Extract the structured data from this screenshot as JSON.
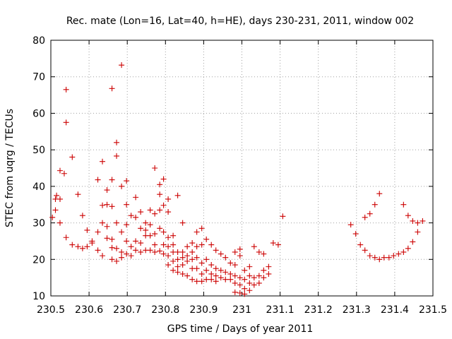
{
  "chart_data": {
    "type": "scatter",
    "title": "Rec. mate (Lon=16, Lat=40, h=HE), days 230-231, 2011, window 002",
    "xlabel": "GPS time / Days of year 2011",
    "ylabel": "STEC from uqrg / TECUs",
    "xlim": [
      230.5,
      231.5
    ],
    "ylim": [
      10,
      80
    ],
    "grid": true,
    "marker": "plus",
    "color": "#cc0000",
    "x_ticks": [
      "230.5",
      "230.6",
      "230.7",
      "230.8",
      "230.9",
      "231",
      "231.1",
      "231.2",
      "231.3",
      "231.4",
      "231.5"
    ],
    "y_ticks": [
      "10",
      "20",
      "30",
      "40",
      "50",
      "60",
      "70",
      "80"
    ],
    "x_tick_values": [
      230.5,
      230.6,
      230.7,
      230.8,
      230.9,
      231.0,
      231.1,
      231.2,
      231.3,
      231.4,
      231.5
    ],
    "y_tick_values": [
      10,
      20,
      30,
      40,
      50,
      60,
      70,
      80
    ],
    "series": [
      {
        "points": [
          [
            230.504,
            31.5
          ],
          [
            230.512,
            33.5
          ],
          [
            230.512,
            36.5
          ],
          [
            230.515,
            37.5
          ],
          [
            230.524,
            36.5
          ],
          [
            230.524,
            30.0
          ],
          [
            230.524,
            44.3
          ],
          [
            230.535,
            43.5
          ],
          [
            230.54,
            66.5
          ],
          [
            230.54,
            57.5
          ],
          [
            230.54,
            26.0
          ],
          [
            230.556,
            48.0
          ],
          [
            230.556,
            24.0
          ],
          [
            230.571,
            37.8
          ],
          [
            230.571,
            23.5
          ],
          [
            230.583,
            32.0
          ],
          [
            230.583,
            23.0
          ],
          [
            230.595,
            28.0
          ],
          [
            230.595,
            23.5
          ],
          [
            230.608,
            25.0
          ],
          [
            230.608,
            24.5
          ],
          [
            230.623,
            41.8
          ],
          [
            230.623,
            27.5
          ],
          [
            230.623,
            22.5
          ],
          [
            230.635,
            46.8
          ],
          [
            230.635,
            34.8
          ],
          [
            230.635,
            30.0
          ],
          [
            230.635,
            21.0
          ],
          [
            230.647,
            39.0
          ],
          [
            230.647,
            35.0
          ],
          [
            230.647,
            29.0
          ],
          [
            230.647,
            25.8
          ],
          [
            230.66,
            66.8
          ],
          [
            230.66,
            41.8
          ],
          [
            230.66,
            34.5
          ],
          [
            230.66,
            25.5
          ],
          [
            230.66,
            23.2
          ],
          [
            230.66,
            20.0
          ],
          [
            230.672,
            52.0
          ],
          [
            230.672,
            48.3
          ],
          [
            230.672,
            30.0
          ],
          [
            230.672,
            23.0
          ],
          [
            230.672,
            19.5
          ],
          [
            230.685,
            73.2
          ],
          [
            230.685,
            40.0
          ],
          [
            230.685,
            27.5
          ],
          [
            230.685,
            22.0
          ],
          [
            230.685,
            20.5
          ],
          [
            230.698,
            41.5
          ],
          [
            230.698,
            35.0
          ],
          [
            230.698,
            29.5
          ],
          [
            230.698,
            25.0
          ],
          [
            230.698,
            21.5
          ],
          [
            230.71,
            32.0
          ],
          [
            230.71,
            23.5
          ],
          [
            230.71,
            21.0
          ],
          [
            230.722,
            37.0
          ],
          [
            230.722,
            31.5
          ],
          [
            230.722,
            25.0
          ],
          [
            230.722,
            22.5
          ],
          [
            230.735,
            33.0
          ],
          [
            230.735,
            28.5
          ],
          [
            230.735,
            24.5
          ],
          [
            230.735,
            22.0
          ],
          [
            230.748,
            30.0
          ],
          [
            230.748,
            28.0
          ],
          [
            230.748,
            26.5
          ],
          [
            230.748,
            22.5
          ],
          [
            230.76,
            33.5
          ],
          [
            230.76,
            29.5
          ],
          [
            230.76,
            26.5
          ],
          [
            230.76,
            22.5
          ],
          [
            230.772,
            45.0
          ],
          [
            230.772,
            32.5
          ],
          [
            230.772,
            27.0
          ],
          [
            230.772,
            24.0
          ],
          [
            230.772,
            22.0
          ],
          [
            230.785,
            40.5
          ],
          [
            230.785,
            37.8
          ],
          [
            230.785,
            33.5
          ],
          [
            230.785,
            28.5
          ],
          [
            230.785,
            22.3
          ],
          [
            230.795,
            42.0
          ],
          [
            230.795,
            34.8
          ],
          [
            230.795,
            27.5
          ],
          [
            230.795,
            24.0
          ],
          [
            230.795,
            21.5
          ],
          [
            230.807,
            36.5
          ],
          [
            230.807,
            33.0
          ],
          [
            230.807,
            26.0
          ],
          [
            230.807,
            23.5
          ],
          [
            230.807,
            21.0
          ],
          [
            230.807,
            18.5
          ],
          [
            230.82,
            26.5
          ],
          [
            230.82,
            24.0
          ],
          [
            230.82,
            22.0
          ],
          [
            230.82,
            19.5
          ],
          [
            230.82,
            17.0
          ],
          [
            230.832,
            37.5
          ],
          [
            230.832,
            22.0
          ],
          [
            230.832,
            20.0
          ],
          [
            230.832,
            18.0
          ],
          [
            230.832,
            16.5
          ],
          [
            230.845,
            30.0
          ],
          [
            230.845,
            22.0
          ],
          [
            230.845,
            20.5
          ],
          [
            230.845,
            18.5
          ],
          [
            230.845,
            16.0
          ],
          [
            230.857,
            23.5
          ],
          [
            230.857,
            21.0
          ],
          [
            230.857,
            19.5
          ],
          [
            230.857,
            15.5
          ],
          [
            230.87,
            24.5
          ],
          [
            230.87,
            22.0
          ],
          [
            230.87,
            20.0
          ],
          [
            230.87,
            17.5
          ],
          [
            230.87,
            14.5
          ],
          [
            230.882,
            27.5
          ],
          [
            230.882,
            23.5
          ],
          [
            230.882,
            20.5
          ],
          [
            230.882,
            17.5
          ],
          [
            230.882,
            14.0
          ],
          [
            230.895,
            28.5
          ],
          [
            230.895,
            24.0
          ],
          [
            230.895,
            19.0
          ],
          [
            230.895,
            16.0
          ],
          [
            230.895,
            14.0
          ],
          [
            230.907,
            25.5
          ],
          [
            230.907,
            20.0
          ],
          [
            230.907,
            17.0
          ],
          [
            230.907,
            14.5
          ],
          [
            230.92,
            24.0
          ],
          [
            230.92,
            18.5
          ],
          [
            230.92,
            16.0
          ],
          [
            230.92,
            14.5
          ],
          [
            230.932,
            22.5
          ],
          [
            230.932,
            17.5
          ],
          [
            230.932,
            15.5
          ],
          [
            230.932,
            14.0
          ],
          [
            230.945,
            21.5
          ],
          [
            230.945,
            17.0
          ],
          [
            230.945,
            15.0
          ],
          [
            230.957,
            20.5
          ],
          [
            230.957,
            16.5
          ],
          [
            230.957,
            14.5
          ],
          [
            230.97,
            19.0
          ],
          [
            230.97,
            16.0
          ],
          [
            230.97,
            14.5
          ],
          [
            230.982,
            22.0
          ],
          [
            230.982,
            18.5
          ],
          [
            230.982,
            15.5
          ],
          [
            230.982,
            13.5
          ],
          [
            230.982,
            11.0
          ],
          [
            230.995,
            22.8
          ],
          [
            230.995,
            21.0
          ],
          [
            230.995,
            15.0
          ],
          [
            230.995,
            13.0
          ],
          [
            230.995,
            10.8
          ],
          [
            231.007,
            17.0
          ],
          [
            231.007,
            14.5
          ],
          [
            231.007,
            12.0
          ],
          [
            231.007,
            10.5
          ],
          [
            231.02,
            18.0
          ],
          [
            231.02,
            15.5
          ],
          [
            231.02,
            13.5
          ],
          [
            231.02,
            11.5
          ],
          [
            231.032,
            23.5
          ],
          [
            231.032,
            15.0
          ],
          [
            231.032,
            13.0
          ],
          [
            231.045,
            22.0
          ],
          [
            231.045,
            15.5
          ],
          [
            231.045,
            13.5
          ],
          [
            231.057,
            21.5
          ],
          [
            231.057,
            17.0
          ],
          [
            231.057,
            15.0
          ],
          [
            231.07,
            18.0
          ],
          [
            231.07,
            16.0
          ],
          [
            231.082,
            24.5
          ],
          [
            231.095,
            24.0
          ],
          [
            231.107,
            31.8
          ],
          [
            231.285,
            29.5
          ],
          [
            231.298,
            27.0
          ],
          [
            231.31,
            24.0
          ],
          [
            231.322,
            31.5
          ],
          [
            231.322,
            22.5
          ],
          [
            231.335,
            32.5
          ],
          [
            231.335,
            21.0
          ],
          [
            231.348,
            35.0
          ],
          [
            231.348,
            20.5
          ],
          [
            231.36,
            38.0
          ],
          [
            231.36,
            20.0
          ],
          [
            231.372,
            20.5
          ],
          [
            231.385,
            20.5
          ],
          [
            231.397,
            21.0
          ],
          [
            231.41,
            21.5
          ],
          [
            231.423,
            35.0
          ],
          [
            231.423,
            22.0
          ],
          [
            231.435,
            32.0
          ],
          [
            231.435,
            23.0
          ],
          [
            231.447,
            30.5
          ],
          [
            231.447,
            24.8
          ],
          [
            231.46,
            30.0
          ],
          [
            231.46,
            27.5
          ],
          [
            231.473,
            30.5
          ]
        ]
      }
    ]
  }
}
